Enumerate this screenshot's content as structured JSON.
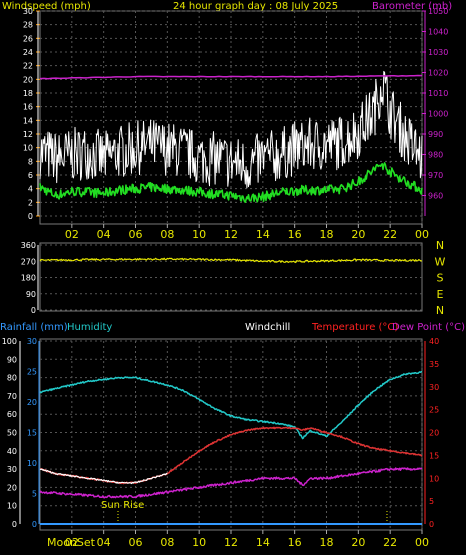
{
  "header": {
    "windspeed_label": "Windspeed (mph)",
    "graph_title": "24 hour graph day : 08 July 2025",
    "barometer_label": "Barometer (mb)"
  },
  "lower_header": {
    "rainfall_label": "Rainfall (mm)",
    "humidity_label": "Humidity",
    "windchill_label": "Windchill",
    "temperature_label": "Temperature (°C)",
    "dewpoint_label": "Dew Point (°C)"
  },
  "events": {
    "sunrise_label": "Sun Rise",
    "moonset_label": "MoonSet",
    "sunrise_hour": 4.9,
    "other_marker_hour": 21.8
  },
  "colors": {
    "wind_avg": "#22dd22",
    "wind_gust": "#ffffff",
    "barometer": "#cc22cc",
    "direction": "#e6e600",
    "humidity": "#22c8c8",
    "temperature": "#dd3333",
    "dewpoint": "#cc22cc",
    "windchill": "#ffffff",
    "rain_axis": "#3399ff",
    "temp_axis": "#ff2222",
    "label_yellow": "#e6e600",
    "grid": "#555555"
  },
  "chart_data": [
    {
      "type": "line",
      "title": "24 hour graph day : 08 July 2025",
      "x_tick_labels": [
        "02",
        "04",
        "06",
        "08",
        "10",
        "12",
        "14",
        "16",
        "18",
        "20",
        "22",
        "00"
      ],
      "left_axis": {
        "label": "Windspeed (mph)",
        "ylim": [
          0,
          30
        ],
        "ticks": [
          0,
          2,
          4,
          6,
          8,
          10,
          12,
          14,
          16,
          18,
          20,
          22,
          24,
          26,
          28,
          30
        ]
      },
      "right_axis": {
        "label": "Barometer (mb)",
        "ylim": [
          950,
          1050
        ],
        "ticks": [
          960,
          970,
          980,
          990,
          1000,
          1010,
          1020,
          1030,
          1040,
          1050
        ]
      },
      "series": [
        {
          "name": "Windspeed",
          "axis": "left",
          "x": [
            0,
            1,
            2,
            3,
            4,
            5,
            6,
            7,
            8,
            9,
            10,
            11,
            12,
            13,
            14,
            15,
            16,
            17,
            18,
            19,
            20,
            21,
            21.5,
            22,
            23,
            24
          ],
          "values": [
            4.2,
            3,
            3.6,
            3.5,
            3.3,
            3.8,
            4,
            4.2,
            4,
            3.8,
            3.5,
            3.2,
            3,
            2.6,
            2.8,
            3.4,
            3.7,
            3.8,
            3.8,
            4,
            5,
            6.8,
            7.6,
            6.5,
            5,
            3.8
          ]
        },
        {
          "name": "Gust",
          "axis": "left",
          "x": [
            0,
            1,
            2,
            3,
            4,
            5,
            6,
            7,
            8,
            9,
            10,
            11,
            12,
            13,
            14,
            15,
            16,
            17,
            18,
            19,
            20,
            21,
            21.5,
            22,
            23,
            24
          ],
          "values": [
            9,
            8,
            8.5,
            9,
            8,
            9,
            9.5,
            10,
            9.5,
            9,
            8,
            8,
            7.5,
            7,
            8,
            8.5,
            9.5,
            10,
            10,
            10.5,
            12,
            15,
            19.5,
            15,
            11,
            8
          ]
        },
        {
          "name": "Barometer",
          "axis": "right",
          "x": [
            0,
            6,
            12,
            18,
            24
          ],
          "values": [
            1017,
            1018,
            1018,
            1018,
            1018.5
          ]
        }
      ]
    },
    {
      "type": "line",
      "x_tick_labels": [
        "02",
        "04",
        "06",
        "08",
        "10",
        "12",
        "14",
        "16",
        "18",
        "20",
        "22",
        "00"
      ],
      "left_axis": {
        "ticks": [
          0,
          90,
          180,
          270,
          360
        ],
        "ylim": [
          0,
          360
        ]
      },
      "right_axis": {
        "ticks": [
          "N",
          "W",
          "S",
          "E",
          "N"
        ]
      },
      "series": [
        {
          "name": "Wind Direction",
          "x": [
            0,
            4,
            8,
            12,
            14,
            16,
            18,
            20,
            22,
            24
          ],
          "values": [
            275,
            280,
            282,
            278,
            270,
            268,
            272,
            278,
            274,
            276
          ]
        }
      ]
    },
    {
      "type": "line",
      "x_tick_labels": [
        "02",
        "04",
        "06",
        "08",
        "10",
        "12",
        "14",
        "16",
        "18",
        "20",
        "22",
        "00"
      ],
      "left_axis": {
        "label": "Rainfall (mm) / Humidity",
        "ylim": [
          0,
          100
        ],
        "ticks": [
          0,
          10,
          20,
          30,
          40,
          50,
          60,
          70,
          80,
          90,
          100
        ]
      },
      "inner_left_axis": {
        "label": "Rainfall (mm)",
        "ylim": [
          0,
          30
        ],
        "ticks": [
          0,
          5,
          10,
          15,
          20,
          25,
          30
        ]
      },
      "right_axis": {
        "label": "Temperature (°C)",
        "ylim": [
          0,
          40
        ],
        "ticks": [
          0,
          5,
          10,
          15,
          20,
          25,
          30,
          35,
          40
        ]
      },
      "series": [
        {
          "name": "Humidity",
          "axis": "left",
          "x": [
            0,
            1,
            2,
            3,
            4,
            5,
            6,
            7,
            8,
            9,
            10,
            11,
            12,
            13,
            14,
            15,
            16,
            16.5,
            17,
            18,
            19,
            20,
            21,
            22,
            23,
            24
          ],
          "values": [
            72,
            74,
            76,
            78,
            79,
            80,
            80,
            78,
            76,
            73,
            68,
            63,
            59,
            57,
            56,
            55,
            53,
            47,
            51,
            48,
            56,
            65,
            73,
            79,
            82,
            83
          ]
        },
        {
          "name": "Temperature",
          "axis": "right",
          "x": [
            0,
            1,
            2,
            3,
            4,
            5,
            6,
            7,
            8,
            9,
            10,
            11,
            12,
            13,
            14,
            15,
            16,
            16.5,
            17,
            18,
            19,
            20,
            21,
            22,
            23,
            24
          ],
          "values": [
            12,
            11,
            10.5,
            10,
            9.5,
            9,
            9,
            10,
            11,
            13.5,
            16,
            18,
            19.5,
            20.5,
            21,
            21,
            21,
            20.5,
            21,
            20,
            19,
            17.5,
            16.5,
            16,
            15.5,
            15
          ]
        },
        {
          "name": "Dew Point",
          "axis": "right",
          "x": [
            0,
            2,
            4,
            6,
            8,
            10,
            12,
            14,
            16,
            16.5,
            17,
            18,
            20,
            22,
            24
          ],
          "values": [
            7,
            6.5,
            6,
            6,
            7,
            8,
            9,
            10,
            10,
            8.5,
            10,
            10,
            11,
            12,
            12
          ]
        },
        {
          "name": "Windchill",
          "axis": "right",
          "x": [
            0,
            1,
            2,
            3,
            4,
            5,
            6,
            7,
            8
          ],
          "values": [
            12,
            11,
            10.5,
            10,
            9.5,
            9,
            9,
            10,
            11
          ]
        },
        {
          "name": "Rainfall",
          "axis": "inner_left",
          "x": [
            0,
            24
          ],
          "values": [
            0,
            0
          ]
        }
      ]
    }
  ]
}
